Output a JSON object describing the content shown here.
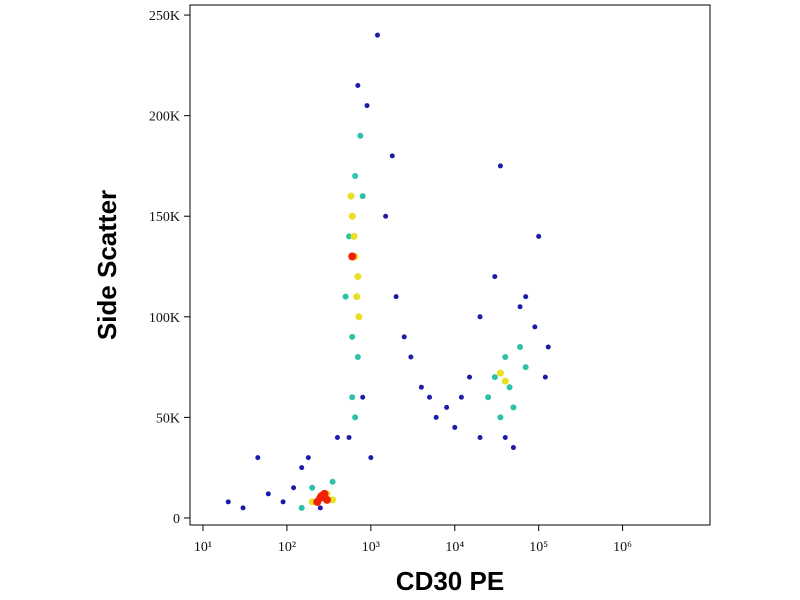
{
  "chart_data": {
    "type": "scatter",
    "x_label": "CD30 PE",
    "y_label": "Side Scatter",
    "xscale": "log",
    "xlim": [
      7,
      11000000
    ],
    "ylim": [
      -3500,
      255000
    ],
    "xticks": [
      {
        "value": 10,
        "label": "10¹"
      },
      {
        "value": 100,
        "label": "10²"
      },
      {
        "value": 1000,
        "label": "10³"
      },
      {
        "value": 10000,
        "label": "10⁴"
      },
      {
        "value": 100000,
        "label": "10⁵"
      },
      {
        "value": 1000000,
        "label": "10⁶"
      }
    ],
    "yticks": [
      0,
      {
        "value": 50000,
        "label": "50K"
      },
      {
        "value": 100000,
        "label": "100K"
      },
      {
        "value": 150000,
        "label": "150K"
      },
      {
        "value": 200000,
        "label": "200K"
      },
      {
        "value": 250000,
        "label": "250K"
      }
    ],
    "grid": false,
    "series": [
      {
        "color": "#1c1ca8",
        "x": [
          150,
          180,
          400,
          120,
          90,
          60,
          45,
          900,
          1200,
          1500,
          2000,
          3000,
          5000,
          8000,
          15000,
          20000,
          30000,
          60000,
          90000,
          120000,
          100000,
          20000,
          10000,
          6000,
          4000,
          2500,
          1800,
          700,
          550,
          800,
          1000,
          50000,
          70000,
          40000,
          12000,
          250,
          30,
          20,
          35000,
          130000
        ],
        "values": [
          25000,
          30000,
          40000,
          15000,
          8000,
          12000,
          30000,
          205000,
          240000,
          150000,
          110000,
          80000,
          60000,
          55000,
          70000,
          100000,
          120000,
          105000,
          95000,
          70000,
          140000,
          40000,
          45000,
          50000,
          65000,
          90000,
          180000,
          215000,
          40000,
          60000,
          30000,
          35000,
          110000,
          40000,
          60000,
          5000,
          5000,
          8000,
          175000,
          85000
        ]
      },
      {
        "color": "#2fc0a8",
        "x": [
          600,
          650,
          750,
          500,
          700,
          550,
          800,
          25000,
          40000,
          50000,
          30000,
          60000,
          35000,
          45000,
          200,
          350,
          150,
          600,
          650,
          70000
        ],
        "values": [
          90000,
          170000,
          190000,
          110000,
          80000,
          140000,
          160000,
          60000,
          80000,
          55000,
          70000,
          85000,
          50000,
          65000,
          15000,
          18000,
          5000,
          60000,
          50000,
          75000
        ]
      },
      {
        "color": "#e8e020",
        "x": [
          650,
          600,
          700,
          580,
          680,
          630,
          40000,
          35000,
          300,
          200,
          350,
          720
        ],
        "values": [
          130000,
          150000,
          120000,
          160000,
          110000,
          140000,
          68000,
          72000,
          12000,
          8000,
          9000,
          100000
        ]
      },
      {
        "color": "#f02000",
        "x": [
          250,
          280,
          230,
          300,
          260,
          600
        ],
        "values": [
          10000,
          12000,
          8000,
          9000,
          11000,
          130000
        ]
      }
    ]
  }
}
